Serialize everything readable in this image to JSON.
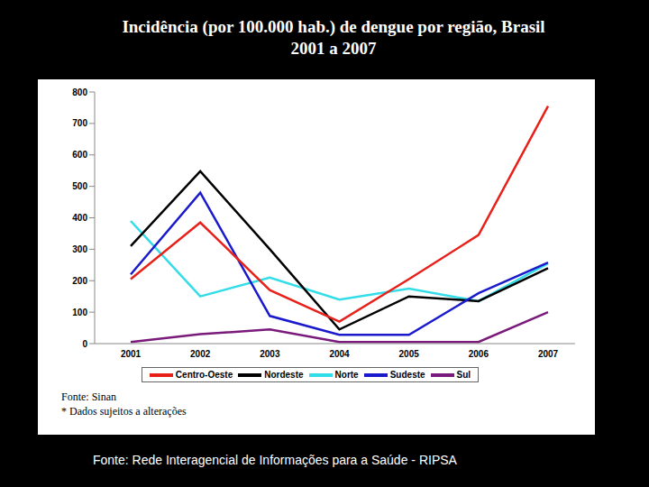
{
  "chart_data": {
    "type": "line",
    "title": "Incidência (por 100.000 hab.) de dengue por região, Brasil 2001 a 2007",
    "categories": [
      "2001",
      "2002",
      "2003",
      "2004",
      "2005",
      "2006",
      "2007"
    ],
    "series": [
      {
        "name": "Norte",
        "color": "#33dde8",
        "values": [
          390,
          150,
          210,
          140,
          175,
          135,
          255
        ]
      },
      {
        "name": "Nordeste",
        "color": "#000000",
        "values": [
          310,
          548,
          300,
          45,
          150,
          135,
          240
        ]
      },
      {
        "name": "Sudeste",
        "color": "#1a1acc",
        "values": [
          220,
          480,
          88,
          28,
          28,
          160,
          258
        ]
      },
      {
        "name": "Sul",
        "color": "#7a1a7a",
        "values": [
          5,
          30,
          45,
          5,
          5,
          5,
          100
        ]
      },
      {
        "name": "Centro-Oeste",
        "color": "#e8201a",
        "values": [
          205,
          385,
          170,
          70,
          205,
          345,
          755
        ]
      }
    ],
    "ylim": [
      0,
      800
    ],
    "yticks": [
      0,
      100,
      200,
      300,
      400,
      500,
      600,
      700,
      800
    ],
    "grid": false,
    "legend": "bottom",
    "annotations": [
      "Fonte: Sinan",
      "* Dados sujeitos a alterações",
      "Fonte: Rede Interagencial de Informações para a Saúde - RIPSA"
    ]
  }
}
